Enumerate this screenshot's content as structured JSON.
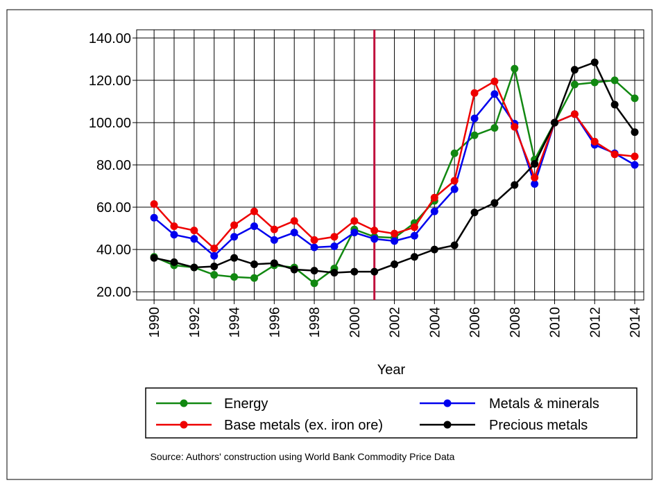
{
  "chart_data": {
    "type": "line",
    "x": [
      1990,
      1991,
      1992,
      1993,
      1994,
      1995,
      1996,
      1997,
      1998,
      1999,
      2000,
      2001,
      2002,
      2003,
      2004,
      2005,
      2006,
      2007,
      2008,
      2009,
      2010,
      2011,
      2012,
      2013,
      2014
    ],
    "series": [
      {
        "name": "Energy",
        "color": "#118811",
        "values": [
          36.5,
          32.5,
          31.5,
          28,
          27,
          26.5,
          32.5,
          31.5,
          24,
          31,
          49.5,
          46,
          45.5,
          52.5,
          63,
          85.5,
          94,
          97.5,
          125.5,
          82.5,
          100,
          118,
          119,
          120,
          111.5
        ]
      },
      {
        "name": "Metals & minerals",
        "color": "#0000ee",
        "values": [
          55,
          47,
          45,
          37,
          46,
          51,
          44.5,
          48,
          41,
          41.5,
          48,
          45,
          44,
          46.5,
          58,
          68.5,
          102,
          113.5,
          99.5,
          71,
          100,
          104,
          89.5,
          85.5,
          80
        ]
      },
      {
        "name": "Base metals (ex. iron ore)",
        "color": "#ee0000",
        "values": [
          61.5,
          51,
          49,
          40.5,
          51.5,
          58,
          49.5,
          53.5,
          44.5,
          46,
          53.5,
          49,
          47.5,
          50.5,
          64.5,
          72.5,
          114,
          119.5,
          98,
          74,
          100,
          104,
          91,
          85,
          84
        ]
      },
      {
        "name": "Precious metals",
        "color": "#000000",
        "values": [
          36,
          34,
          31.5,
          32,
          36,
          33,
          33.5,
          30.5,
          30,
          29,
          29.5,
          29.5,
          33,
          36.5,
          40,
          42,
          57.5,
          62,
          70.5,
          80.5,
          100,
          125,
          128.5,
          108.5,
          95.5
        ]
      }
    ],
    "x_label": "Year",
    "xlim": [
      1989.13,
      2014.45
    ],
    "xticks": [
      1990,
      1992,
      1994,
      1996,
      1998,
      2000,
      2002,
      2004,
      2006,
      2008,
      2010,
      2012,
      2014
    ],
    "xminor": [
      1991,
      1993,
      1995,
      1997,
      1999,
      2001,
      2003,
      2005,
      2007,
      2009,
      2011,
      2013
    ],
    "ylim": [
      16.1,
      143.9
    ],
    "yticks": [
      {
        "value": 20,
        "label": "20.00"
      },
      {
        "value": 40,
        "label": "40.00"
      },
      {
        "value": 60,
        "label": "60.00"
      },
      {
        "value": 80,
        "label": "80.00"
      },
      {
        "value": 100,
        "label": "100.00"
      },
      {
        "value": 120,
        "label": "120.00"
      },
      {
        "value": 140,
        "label": "140.00"
      }
    ],
    "vline": {
      "x": 2001,
      "color": "#c0103c"
    },
    "grid": true,
    "legend": "bottom",
    "source": "Source: Authors' construction using World Bank Commodity Price Data"
  }
}
